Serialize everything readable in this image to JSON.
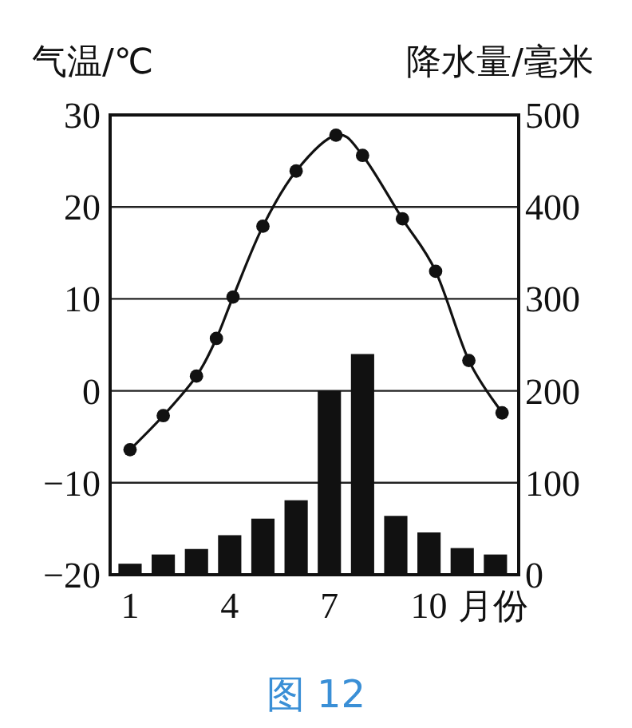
{
  "chart_data": {
    "type": "bar",
    "xlabel": "月份",
    "ylabel": "气温/℃",
    "y2label": "降水量/毫米",
    "xlim": [
      0.4,
      12.7
    ],
    "xticks": [
      1,
      4,
      7,
      10
    ],
    "ylim": [
      -20,
      30
    ],
    "yticks": [
      -20,
      -10,
      0,
      10,
      20,
      30
    ],
    "y2lim": [
      0,
      500
    ],
    "y2ticks": [
      0,
      100,
      200,
      300,
      400,
      500
    ],
    "grid": "y",
    "marker": "circle",
    "series": [
      {
        "axis": "y2",
        "color": "#111111",
        "x": [
          1,
          2,
          3,
          4,
          5,
          6,
          7,
          8,
          9,
          10,
          11,
          12
        ],
        "values": [
          12,
          22,
          28,
          43,
          61,
          81,
          200,
          240,
          64,
          46,
          29,
          22
        ]
      },
      {
        "type": "line",
        "color": "#111111",
        "x": [
          1,
          2,
          3,
          3.6,
          4.1,
          5,
          6,
          7.2,
          8,
          9.2,
          10.2,
          11.2,
          12.2
        ],
        "values": [
          -6.4,
          -2.7,
          1.6,
          5.7,
          10.2,
          17.9,
          23.9,
          27.8,
          25.6,
          18.7,
          13.0,
          3.3,
          -2.4
        ]
      }
    ],
    "annotations": [
      "图 12"
    ]
  }
}
